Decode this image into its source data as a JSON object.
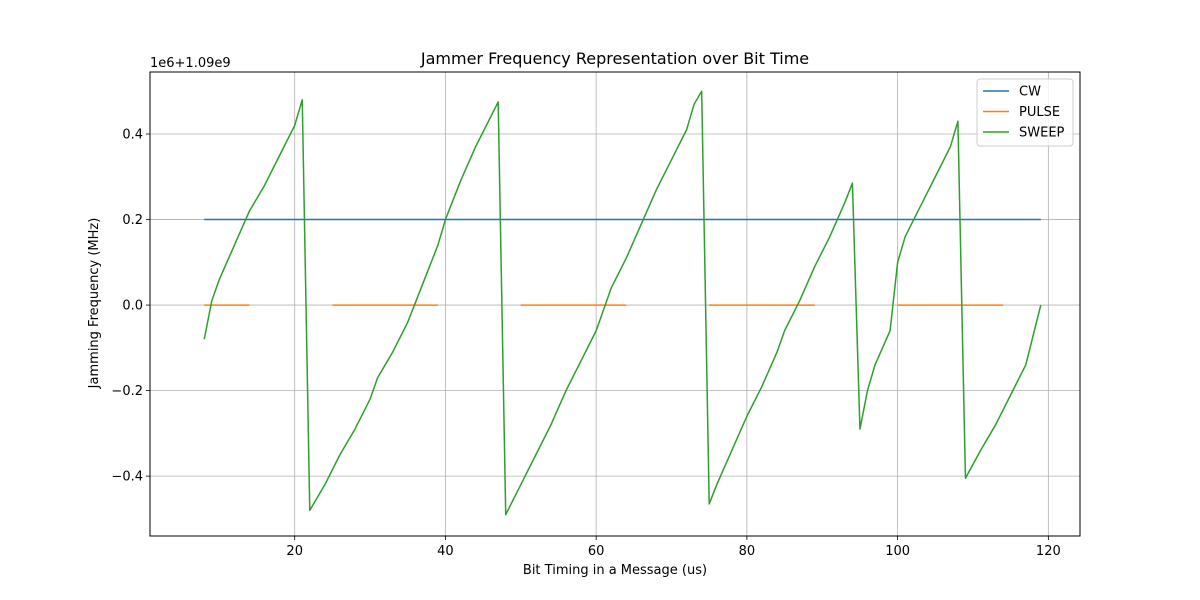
{
  "chart_data": {
    "type": "line",
    "title": "Jammer Frequency Representation over Bit Time",
    "xlabel": "Bit Timing in a Message (us)",
    "ylabel": "Jamming Frequency (MHz)",
    "offset_label": "1e6+1.09e9",
    "xlim": [
      0.8,
      124.2
    ],
    "ylim": [
      -0.54,
      0.545
    ],
    "xticks": [
      20,
      40,
      60,
      80,
      100,
      120
    ],
    "xtick_labels": [
      "20",
      "40",
      "60",
      "80",
      "100",
      "120"
    ],
    "yticks": [
      -0.4,
      -0.2,
      0.0,
      0.2,
      0.4
    ],
    "ytick_labels": [
      "−0.4",
      "−0.2",
      "0.0",
      "0.2",
      "0.4"
    ],
    "grid": true,
    "legend_position": "top-right",
    "series": [
      {
        "name": "CW",
        "color": "#1f77b4",
        "segments": [
          [
            [
              8,
              0.2
            ],
            [
              119,
              0.2
            ]
          ]
        ]
      },
      {
        "name": "PULSE",
        "color": "#ff7f0e",
        "segments": [
          [
            [
              8,
              0.0
            ],
            [
              14,
              0.0
            ]
          ],
          [
            [
              25,
              0.0
            ],
            [
              39,
              0.0
            ]
          ],
          [
            [
              50,
              0.0
            ],
            [
              64,
              0.0
            ]
          ],
          [
            [
              75,
              0.0
            ],
            [
              89,
              0.0
            ]
          ],
          [
            [
              100,
              0.0
            ],
            [
              114,
              0.0
            ]
          ]
        ]
      },
      {
        "name": "SWEEP",
        "color": "#2ca02c",
        "segments": [
          [
            [
              8,
              -0.08
            ],
            [
              9,
              0.01
            ],
            [
              10,
              0.06
            ],
            [
              11,
              0.1
            ],
            [
              12,
              0.14
            ],
            [
              13,
              0.18
            ],
            [
              14,
              0.22
            ],
            [
              16,
              0.28
            ],
            [
              18,
              0.35
            ],
            [
              20,
              0.42
            ],
            [
              21,
              0.48
            ],
            [
              22,
              -0.48
            ],
            [
              24,
              -0.42
            ],
            [
              26,
              -0.35
            ],
            [
              28,
              -0.29
            ],
            [
              30,
              -0.22
            ],
            [
              31,
              -0.17
            ],
            [
              33,
              -0.11
            ],
            [
              35,
              -0.04
            ],
            [
              37,
              0.05
            ],
            [
              39,
              0.14
            ],
            [
              40,
              0.2
            ],
            [
              42,
              0.29
            ],
            [
              44,
              0.37
            ],
            [
              46,
              0.44
            ],
            [
              47,
              0.475
            ],
            [
              48,
              -0.49
            ],
            [
              50,
              -0.42
            ],
            [
              52,
              -0.35
            ],
            [
              54,
              -0.28
            ],
            [
              56,
              -0.2
            ],
            [
              58,
              -0.13
            ],
            [
              60,
              -0.06
            ],
            [
              62,
              0.04
            ],
            [
              64,
              0.11
            ],
            [
              66,
              0.19
            ],
            [
              68,
              0.27
            ],
            [
              70,
              0.34
            ],
            [
              72,
              0.41
            ],
            [
              73,
              0.47
            ],
            [
              74,
              0.5
            ],
            [
              75,
              -0.465
            ],
            [
              76,
              -0.42
            ],
            [
              77,
              -0.38
            ],
            [
              78,
              -0.34
            ],
            [
              80,
              -0.26
            ],
            [
              82,
              -0.19
            ],
            [
              84,
              -0.11
            ],
            [
              85,
              -0.06
            ],
            [
              87,
              0.01
            ],
            [
              89,
              0.09
            ],
            [
              91,
              0.16
            ],
            [
              93,
              0.24
            ],
            [
              94,
              0.285
            ],
            [
              95,
              -0.29
            ],
            [
              96,
              -0.2
            ],
            [
              97,
              -0.14
            ],
            [
              98,
              -0.1
            ],
            [
              99,
              -0.06
            ],
            [
              100,
              0.1
            ],
            [
              101,
              0.16
            ],
            [
              103,
              0.23
            ],
            [
              105,
              0.3
            ],
            [
              107,
              0.37
            ],
            [
              108,
              0.43
            ],
            [
              109,
              -0.405
            ],
            [
              111,
              -0.34
            ],
            [
              113,
              -0.28
            ],
            [
              115,
              -0.21
            ],
            [
              117,
              -0.14
            ],
            [
              119,
              0.0
            ]
          ]
        ]
      }
    ]
  }
}
